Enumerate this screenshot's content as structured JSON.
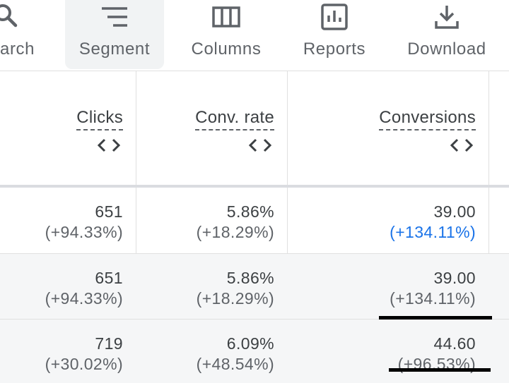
{
  "toolbar": {
    "items": [
      {
        "label": "arch",
        "icon": "search-icon"
      },
      {
        "label": "Segment",
        "icon": "segment-icon"
      },
      {
        "label": "Columns",
        "icon": "columns-icon"
      },
      {
        "label": "Reports",
        "icon": "reports-icon"
      },
      {
        "label": "Download",
        "icon": "download-icon"
      }
    ]
  },
  "table": {
    "headers": [
      {
        "label": "Clicks"
      },
      {
        "label": "Conv. rate"
      },
      {
        "label": "Conversions"
      }
    ],
    "rows": [
      {
        "clicks": "651",
        "clicks_change": "(+94.33%)",
        "conv_rate": "5.86%",
        "conv_rate_change": "(+18.29%)",
        "conversions": "39.00",
        "conversions_change": "(+134.11%)"
      },
      {
        "clicks": "651",
        "clicks_change": "(+94.33%)",
        "conv_rate": "5.86%",
        "conv_rate_change": "(+18.29%)",
        "conversions": "39.00",
        "conversions_change": "(+134.11%)"
      },
      {
        "clicks": "719",
        "clicks_change": "(+30.02%)",
        "conv_rate": "6.09%",
        "conv_rate_change": "(+48.54%)",
        "conversions": "44.60",
        "conversions_change": "(+96.53%)"
      }
    ]
  },
  "colors": {
    "link_blue": "#1a73e8",
    "text": "#3c4043",
    "muted": "#5f6368",
    "row_alt": "#f5f6f7"
  }
}
